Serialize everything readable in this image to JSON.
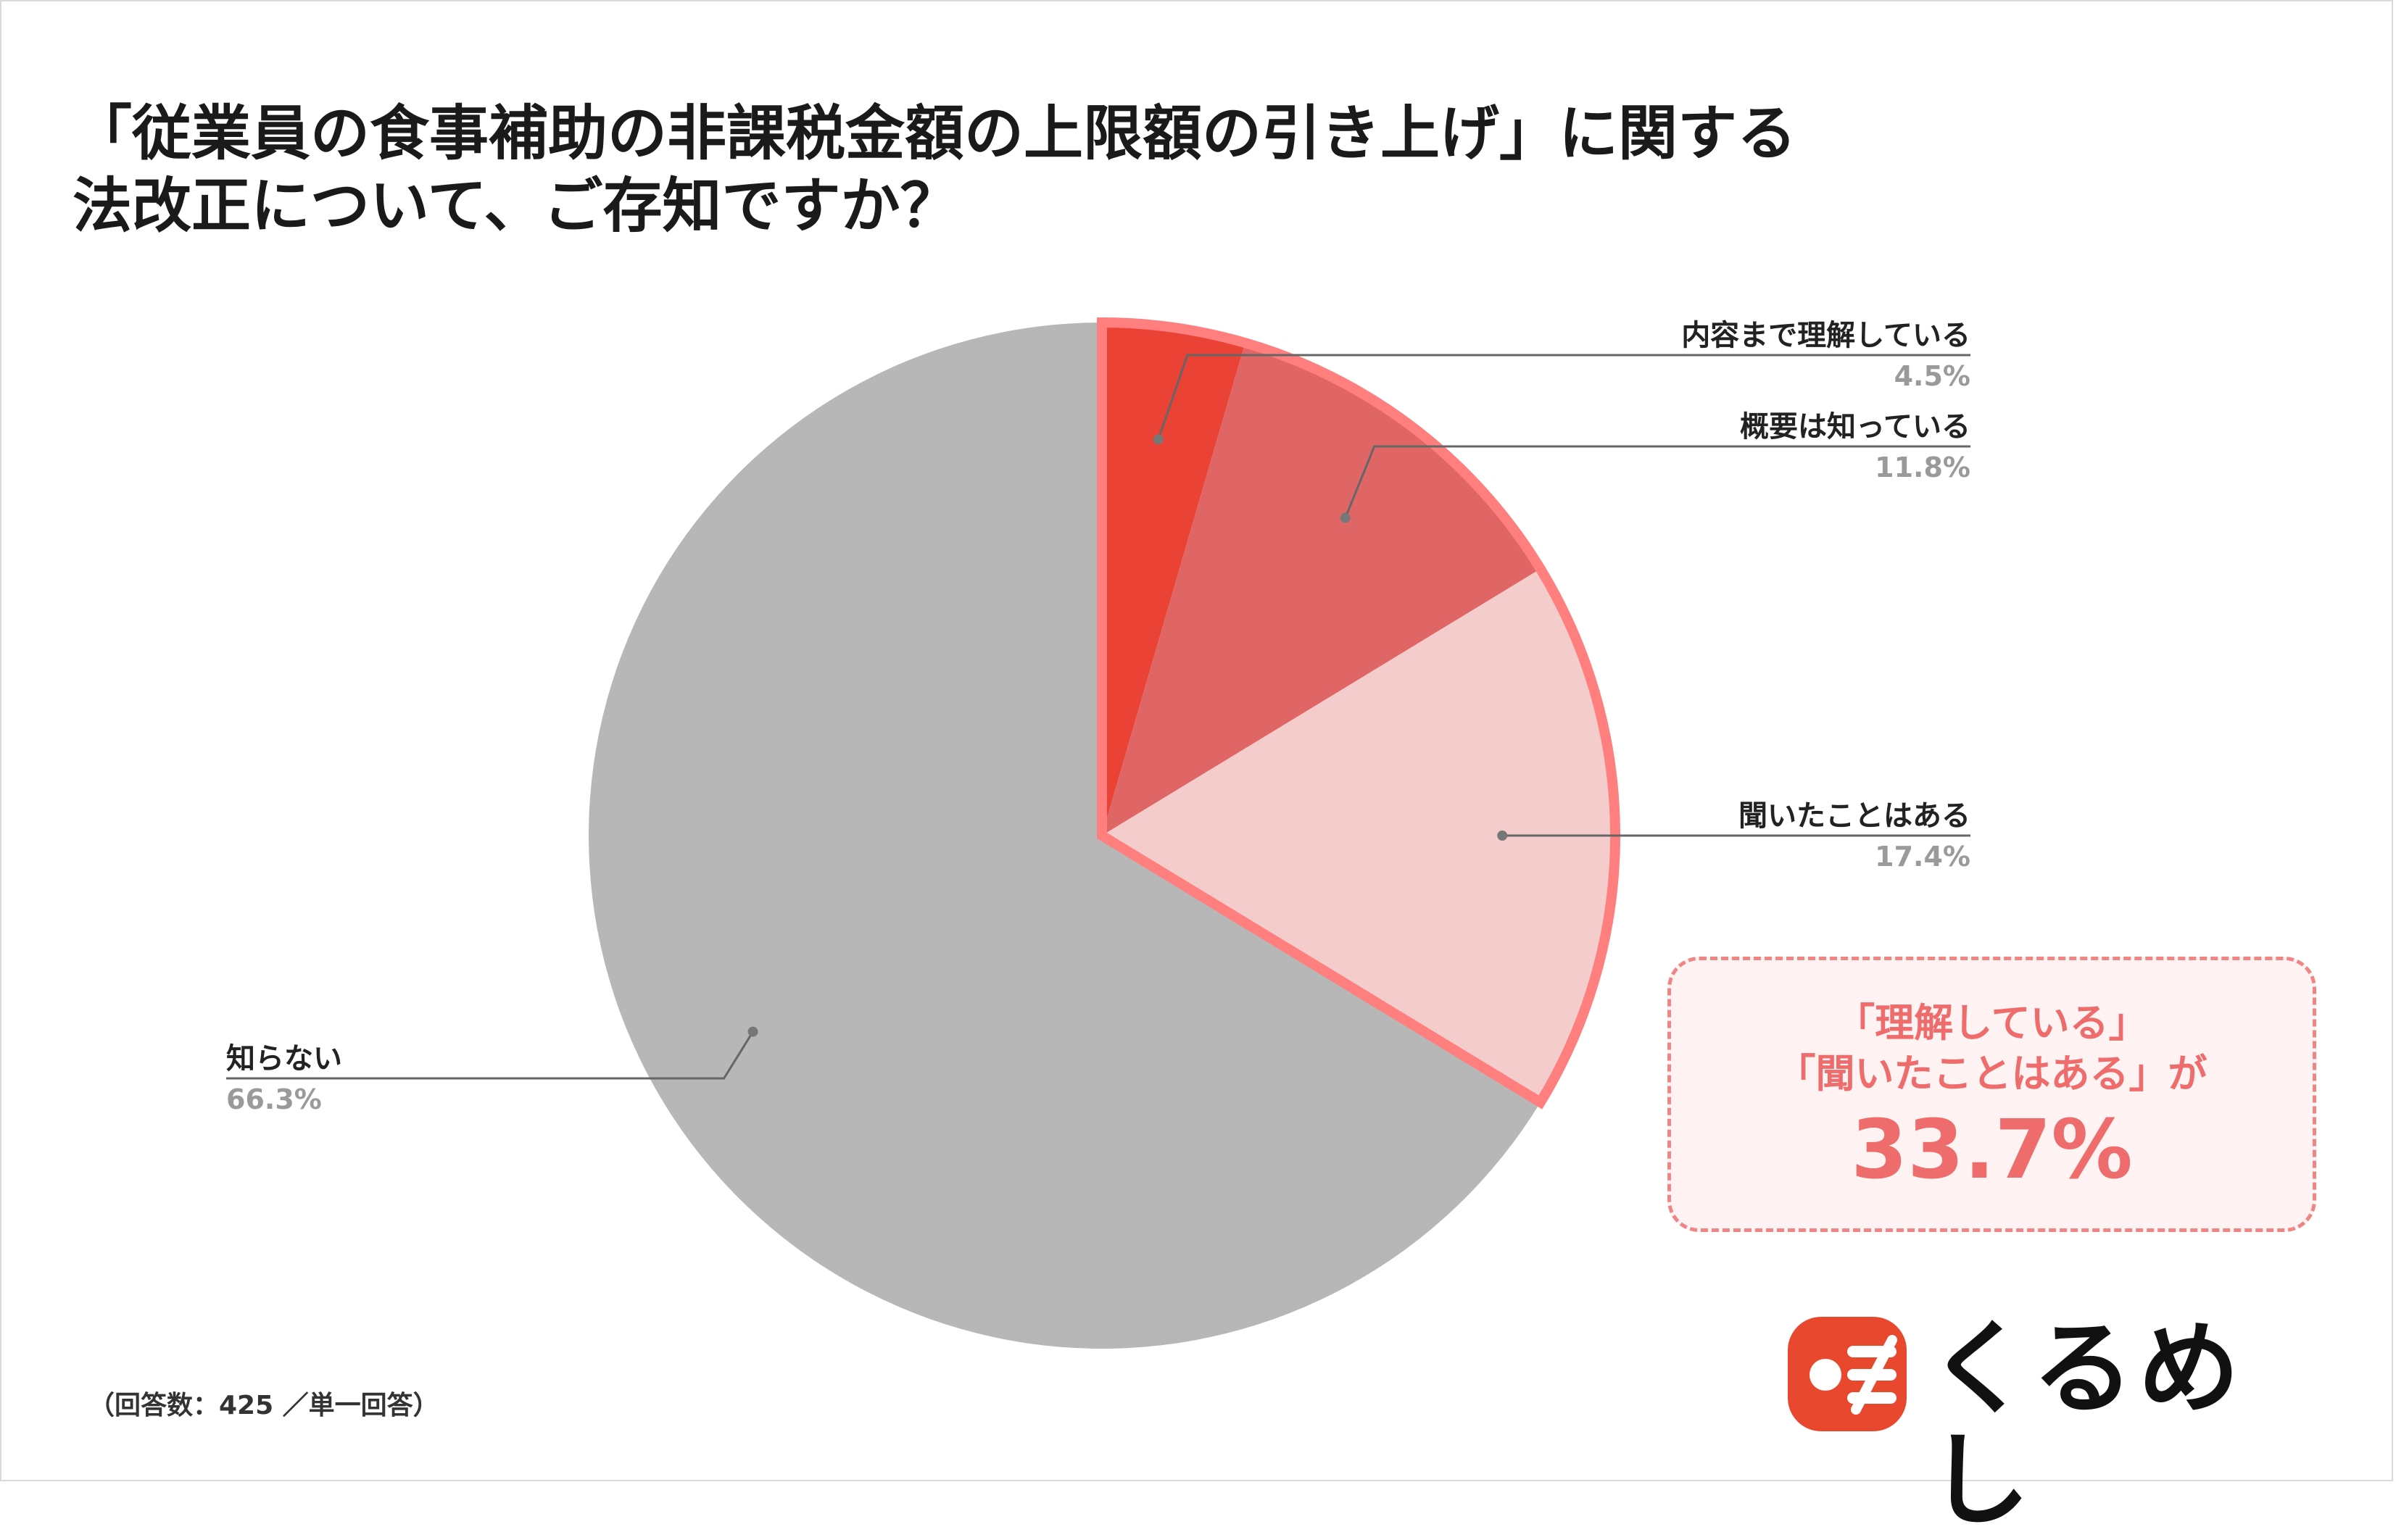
{
  "title": {
    "line1": "「従業員の食事補助の非課税金額の上限額の引き上げ」に関する",
    "line2": "法改正について、ご存知ですか？"
  },
  "chart_data": {
    "type": "pie",
    "start_angle_deg": 0,
    "direction": "clockwise",
    "slices": [
      {
        "label": "内容まで理解している",
        "value": 4.5,
        "value_label": "4.5%",
        "color": "#ea4335"
      },
      {
        "label": "概要は知っている",
        "value": 11.8,
        "value_label": "11.8%",
        "color": "#e06666"
      },
      {
        "label": "聞いたことはある",
        "value": 17.4,
        "value_label": "17.4%",
        "color": "#f4cccc"
      },
      {
        "label": "知らない",
        "value": 66.3,
        "value_label": "66.3%",
        "color": "#b7b7b7"
      }
    ],
    "highlight_color": "#ff7f7f",
    "highlighted_slices": [
      0,
      1,
      2
    ]
  },
  "callout": {
    "line1": "「理解している」",
    "line2": "「聞いたことはある」が",
    "value": "33.7%"
  },
  "footnote": "（回答数：425 ／単一回答）",
  "logo": {
    "name": "くるめし",
    "icon": "kurumeshi-logo-icon",
    "accent_color": "#e8492e"
  }
}
